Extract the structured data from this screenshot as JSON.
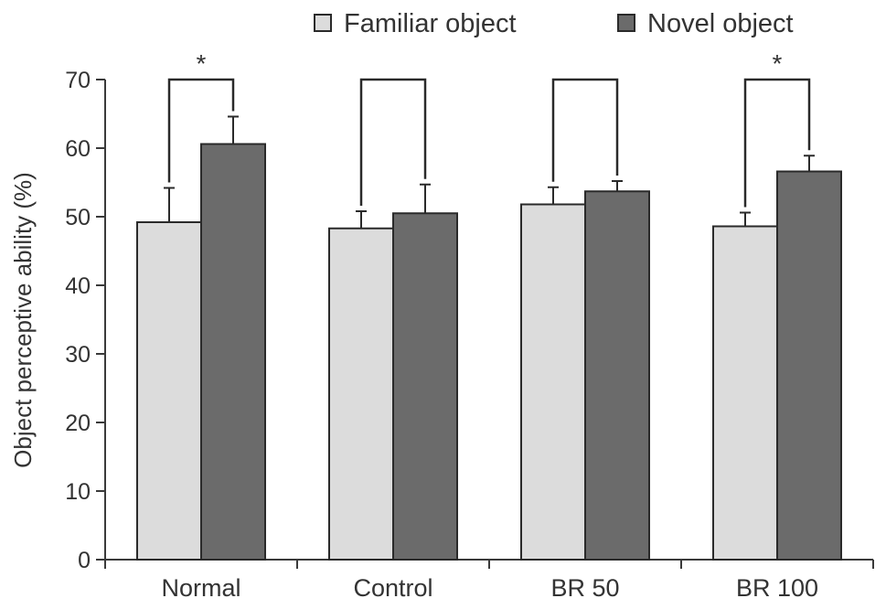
{
  "chart_data": {
    "type": "bar",
    "categories": [
      "Normal",
      "Control",
      "BR 50",
      "BR 100"
    ],
    "series": [
      {
        "name": "Familiar object",
        "values": [
          49.2,
          48.3,
          51.8,
          48.6
        ],
        "errors": [
          5.0,
          2.5,
          2.5,
          2.0
        ],
        "color": "#dcdcdc"
      },
      {
        "name": "Novel object",
        "values": [
          60.6,
          50.5,
          53.7,
          56.6
        ],
        "errors": [
          4.0,
          4.2,
          1.5,
          2.3
        ],
        "color": "#6b6b6b"
      }
    ],
    "significance": [
      "*",
      "",
      "",
      "*"
    ],
    "xlabel": "",
    "ylabel": "Object perceptive ability (%)",
    "ylim": [
      0,
      70
    ],
    "yticks": [
      "0",
      "10",
      "20",
      "30",
      "40",
      "50",
      "60",
      "70"
    ],
    "legend_position": "top",
    "grid": false
  }
}
